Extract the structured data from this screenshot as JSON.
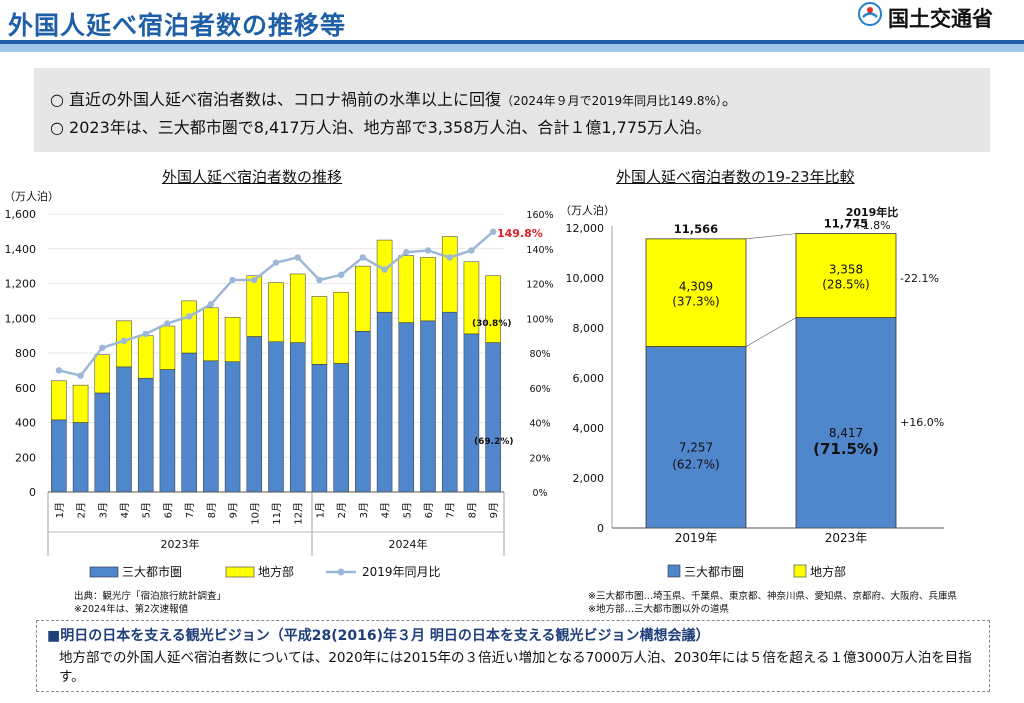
{
  "header": {
    "title": "外国人延べ宿泊者数の推移等",
    "ministry": "国土交通省"
  },
  "summary": {
    "line1": "○ 直近の外国人延べ宿泊者数は、コロナ禍前の水準以上に回復",
    "line1_note": "（2024年９月で2019年同月比149.8%）",
    "line1_end": "。",
    "line2": "○ 2023年は、三大都市圏で8,417万人泊、地方部で3,358万人泊、合計１億1,775万人泊。"
  },
  "colors": {
    "metro": "#4f86cc",
    "local": "#ffff00",
    "ratio": "#9db7d6",
    "highlight": "#e0202a",
    "border": "#333333"
  },
  "left_chart": {
    "title": "外国人延べ宿泊者数の推移",
    "y_unit": "（万人泊）",
    "y_ticks": [
      "1,600",
      "1,400",
      "1,200",
      "1,000",
      "800",
      "600",
      "400",
      "200",
      "0"
    ],
    "y2_ticks": [
      "160%",
      "140%",
      "120%",
      "100%",
      "80%",
      "60%",
      "40%",
      "20%",
      "0%"
    ],
    "year_labels": [
      "2023年",
      "2024年"
    ],
    "last_ratio_label": "149.8%",
    "local_share_label": "(30.8%)",
    "metro_share_label": "(69.2%)",
    "notes": [
      "出典：観光庁「宿泊旅行統計調査」",
      "※2024年は、第2次速報値"
    ]
  },
  "legend": {
    "metro": "三大都市圏",
    "local": "地方部",
    "ratio": "2019年同月比"
  },
  "right_chart": {
    "title": "外国人延べ宿泊者数の19-23年比較",
    "y_unit": "（万人泊）",
    "y_ticks": [
      "12,000",
      "10,000",
      "8,000",
      "6,000",
      "4,000",
      "2,000",
      "0"
    ],
    "totals": [
      "11,566",
      "11,775"
    ],
    "compare_title": "2019年比",
    "compare_total": "+1.8%",
    "compare_local": "-22.1%",
    "compare_metro": "+16.0%",
    "bar1_local_value": "4,309",
    "bar1_local_share": "(37.3%)",
    "bar1_metro_value": "7,257",
    "bar1_metro_share": "(62.7%)",
    "bar2_local_value": "3,358",
    "bar2_local_share": "(28.5%)",
    "bar2_metro_value": "8,417",
    "bar2_metro_share": "(71.5%)",
    "notes": [
      "※三大都市圏…埼玉県、千葉県、東京都、神奈川県、愛知県、京都府、大阪府、兵庫県",
      "※地方部…三大都市圏以外の道県"
    ]
  },
  "vision": {
    "title": "■明日の日本を支える観光ビジョン（平成28(2016)年３月 明日の日本を支える観光ビジョン構想会議）",
    "text": "地方部での外国人延べ宿泊者数については、2020年には2015年の３倍近い増加となる7000万人泊、2030年には５倍を超える１億3000万人泊を目指す。"
  },
  "chart_data": [
    {
      "type": "bar",
      "stacked": true,
      "title": "外国人延べ宿泊者数の推移",
      "ylabel": "（万人泊）",
      "ylim": [
        0,
        1600
      ],
      "y2lim": [
        0,
        160
      ],
      "categories": [
        "1月",
        "2月",
        "3月",
        "4月",
        "5月",
        "6月",
        "7月",
        "8月",
        "9月",
        "10月",
        "11月",
        "12月",
        "1月",
        "2月",
        "3月",
        "4月",
        "5月",
        "6月",
        "7月",
        "8月",
        "9月"
      ],
      "years": [
        "2023年",
        "2023年",
        "2023年",
        "2023年",
        "2023年",
        "2023年",
        "2023年",
        "2023年",
        "2023年",
        "2023年",
        "2023年",
        "2023年",
        "2024年",
        "2024年",
        "2024年",
        "2024年",
        "2024年",
        "2024年",
        "2024年",
        "2024年",
        "2024年"
      ],
      "series": [
        {
          "name": "三大都市圏",
          "values": [
            415,
            400,
            570,
            720,
            655,
            705,
            800,
            755,
            750,
            895,
            865,
            860,
            735,
            740,
            925,
            1035,
            975,
            985,
            1035,
            910,
            860
          ]
        },
        {
          "name": "地方部",
          "values": [
            225,
            215,
            220,
            265,
            245,
            250,
            300,
            305,
            255,
            350,
            340,
            395,
            390,
            410,
            375,
            415,
            385,
            365,
            435,
            415,
            385
          ]
        },
        {
          "name": "2019年同月比",
          "unit": "%",
          "values": [
            70,
            67,
            83,
            87,
            91,
            97,
            101,
            108,
            122,
            122,
            132,
            135,
            122,
            125,
            135,
            128,
            138,
            139,
            135,
            139,
            149.8
          ]
        }
      ],
      "legend": "bottom"
    },
    {
      "type": "bar",
      "stacked": true,
      "title": "外国人延べ宿泊者数の19-23年比較",
      "ylabel": "（万人泊）",
      "ylim": [
        0,
        12000
      ],
      "categories": [
        "2019年",
        "2023年"
      ],
      "series": [
        {
          "name": "三大都市圏",
          "values": [
            7257,
            8417
          ]
        },
        {
          "name": "地方部",
          "values": [
            4309,
            3358
          ]
        }
      ],
      "totals": [
        11566,
        11775
      ],
      "legend": "bottom"
    }
  ]
}
